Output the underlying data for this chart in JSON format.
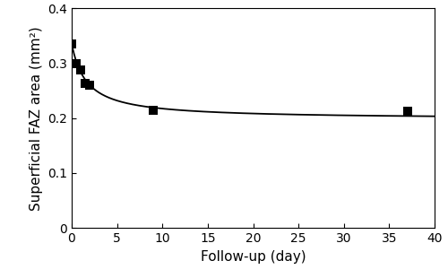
{
  "scatter_x": [
    0.0,
    0.5,
    1.0,
    1.5,
    2.0,
    9.0,
    37.0
  ],
  "scatter_y": [
    0.335,
    0.3,
    0.288,
    0.263,
    0.26,
    0.215,
    0.212
  ],
  "hyperbolic_a": 0.336,
  "hyperbolic_b": 0.138,
  "hyperbolic_c": 1.634,
  "x_min": 0,
  "x_max": 40,
  "y_min": 0,
  "y_max": 0.4,
  "x_ticks": [
    0,
    5,
    10,
    15,
    20,
    25,
    30,
    35,
    40
  ],
  "y_ticks": [
    0,
    0.1,
    0.2,
    0.3,
    0.4
  ],
  "y_tick_labels": [
    "0",
    "0.1",
    "0.2",
    "0.3",
    "0.4"
  ],
  "xlabel": "Follow-up (day)",
  "ylabel": "Superficial FAZ area (mm²)",
  "marker_color": "black",
  "line_color": "black",
  "marker_size": 55,
  "line_width": 1.3,
  "tick_fontsize": 10,
  "label_fontsize": 11,
  "fig_width": 5.0,
  "fig_height": 3.1,
  "dpi": 100
}
